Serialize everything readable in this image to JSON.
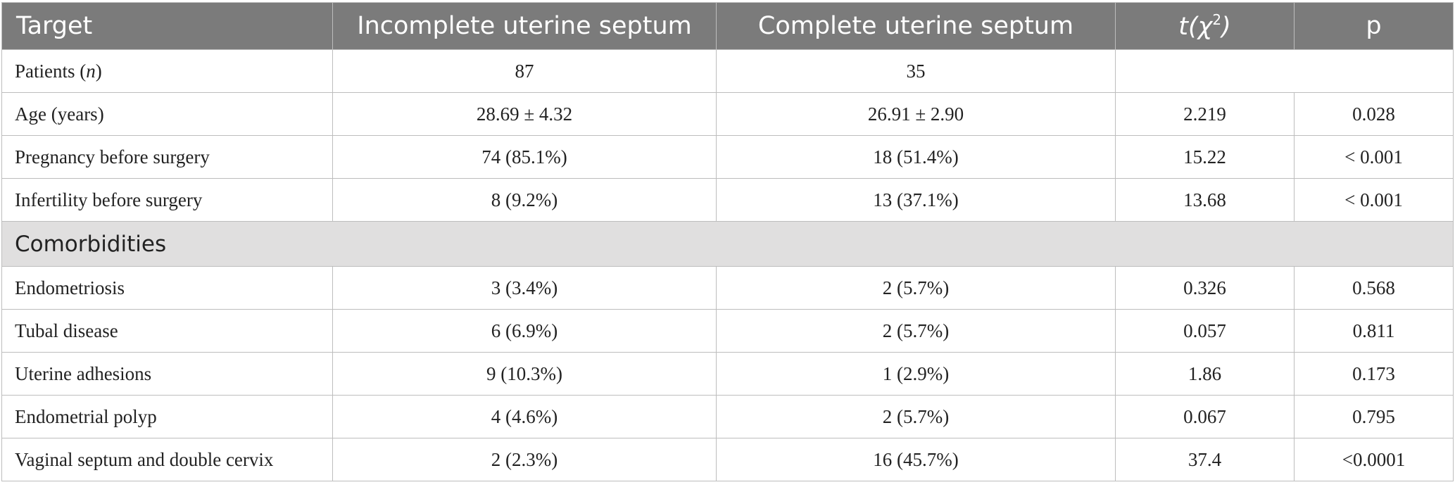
{
  "table": {
    "headers": {
      "target": "Target",
      "incomplete": "Incomplete uterine septum",
      "complete": "Complete uterine septum",
      "stat_t": "t(χ",
      "stat_sup": "2",
      "stat_close": ")",
      "p": "p"
    },
    "patients_row": {
      "label": "Patients (",
      "label_italic": "n",
      "label_close": ")",
      "incomplete": "87",
      "complete": "35"
    },
    "rows": [
      {
        "label": "Age (years)",
        "incomplete": "28.69 ± 4.32",
        "complete": "26.91 ± 2.90",
        "stat": "2.219",
        "p": "0.028"
      },
      {
        "label": "Pregnancy before surgery",
        "incomplete": "74 (85.1%)",
        "complete": "18 (51.4%)",
        "stat": "15.22",
        "p": "< 0.001"
      },
      {
        "label": "Infertility before surgery",
        "incomplete": "8 (9.2%)",
        "complete": "13 (37.1%)",
        "stat": "13.68",
        "p": "< 0.001"
      }
    ],
    "section_title": "Comorbidities",
    "comorbidity_rows": [
      {
        "label": "Endometriosis",
        "incomplete": "3 (3.4%)",
        "complete": "2 (5.7%)",
        "stat": "0.326",
        "p": "0.568"
      },
      {
        "label": "Tubal disease",
        "incomplete": "6 (6.9%)",
        "complete": "2 (5.7%)",
        "stat": "0.057",
        "p": "0.811"
      },
      {
        "label": "Uterine adhesions",
        "incomplete": "9 (10.3%)",
        "complete": "1 (2.9%)",
        "stat": "1.86",
        "p": "0.173"
      },
      {
        "label": "Endometrial polyp",
        "incomplete": "4 (4.6%)",
        "complete": "2 (5.7%)",
        "stat": "0.067",
        "p": "0.795"
      },
      {
        "label": "Vaginal septum and double cervix",
        "incomplete": "2 (2.3%)",
        "complete": "16 (45.7%)",
        "stat": "37.4",
        "p": "<0.0001"
      }
    ]
  }
}
